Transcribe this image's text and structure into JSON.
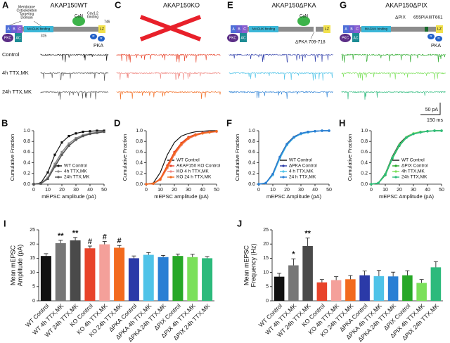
{
  "figure": {
    "top_panels": [
      {
        "label": "A",
        "title": "AKAP150WT",
        "diagram": {
          "targeting": [
            "Membrane",
            "Cytoskeleton",
            "Targeting",
            "Domain"
          ],
          "residue_a": "315",
          "abc": [
            "A",
            "B",
            "C"
          ],
          "maguk": "MAGUK binding",
          "pkc": "PKC",
          "ac": "AC",
          "can": "CaN",
          "cav": [
            "Cav1.2",
            "binding"
          ],
          "residue_b": "746",
          "lz": "LZ",
          "r": "R",
          "pka": "PKA"
        },
        "trace_labels": [
          "Control",
          "4h TTX,MK",
          "24h TTX,MK"
        ],
        "trace_colors": [
          "#111111",
          "#555555",
          "#555555"
        ]
      },
      {
        "label": "C",
        "title": "AKAP150KO",
        "trace_colors": [
          "#e8432a",
          "#f08a84",
          "#f26a1e"
        ]
      },
      {
        "label": "E",
        "title": "AKAP150ΔPKA",
        "diagram": {
          "abc": [
            "A",
            "B",
            "C"
          ],
          "maguk": "MAGUK binding",
          "pkc": "PKC",
          "ac": "AC",
          "can": "CaN",
          "lz": "LZ",
          "deletion": "ΔPKA 709-718"
        },
        "trace_colors": [
          "#2b3aa8",
          "#4fc3e8",
          "#2a7fd4"
        ]
      },
      {
        "label": "G",
        "title": "AKAP150ΔPIX",
        "diagram": {
          "abc": [
            "A",
            "B",
            "C"
          ],
          "maguk": "MAGUK binding",
          "pkc": "PKC",
          "ac": "AC",
          "lz": "LZ",
          "r": "R",
          "pka": "PKA",
          "pix": "ΔPIX",
          "sequence": "655PIAIIIT661"
        },
        "trace_colors": [
          "#27a827",
          "#7be05a",
          "#2cba7c"
        ],
        "scale_bar": {
          "y": "50 pA",
          "x": "150 ms"
        }
      }
    ]
  },
  "chart_data": [
    {
      "type": "line",
      "panel": "B",
      "xlabel": "mEPSC amplitude (pA)",
      "ylabel": "Cumulative Fraction",
      "x": [
        0,
        5,
        10,
        15,
        20,
        25,
        30,
        35,
        40,
        45,
        50
      ],
      "xlim": [
        0,
        50
      ],
      "xticks": [
        0,
        10,
        20,
        30,
        40,
        50
      ],
      "ylim": [
        0,
        1
      ],
      "yticks": [
        {
          "value": 0,
          "label": "0.0"
        },
        0.2,
        0.4,
        0.6,
        0.8,
        {
          "value": 1,
          "label": "1.0"
        }
      ],
      "legend": "lower right",
      "series": [
        {
          "name": "WT Control",
          "color": "#111111",
          "marker": "square",
          "values": [
            0,
            0.02,
            0.22,
            0.55,
            0.78,
            0.9,
            0.95,
            0.98,
            0.99,
            1,
            1
          ]
        },
        {
          "name": "4h TTX,MK",
          "color": "#8a8a8a",
          "marker": "square",
          "values": [
            0,
            0.01,
            0.12,
            0.38,
            0.6,
            0.76,
            0.86,
            0.92,
            0.95,
            0.97,
            0.98
          ]
        },
        {
          "name": "24h TTX,MK",
          "color": "#555555",
          "marker": "square",
          "values": [
            0,
            0.01,
            0.1,
            0.33,
            0.55,
            0.72,
            0.83,
            0.9,
            0.94,
            0.96,
            0.98
          ]
        }
      ]
    },
    {
      "type": "line",
      "panel": "D",
      "xlabel": "mEPSC amplitude (pA)",
      "ylabel": "Cumulative Fraction",
      "x": [
        0,
        5,
        10,
        15,
        20,
        25,
        30,
        35,
        40,
        45,
        50
      ],
      "xlim": [
        0,
        50
      ],
      "xticks": [
        0,
        10,
        20,
        30,
        40,
        50
      ],
      "ylim": [
        0,
        1
      ],
      "yticks": [
        {
          "value": 0,
          "label": "0.0"
        },
        0.2,
        0.4,
        0.6,
        0.8,
        {
          "value": 1,
          "label": "1.0"
        }
      ],
      "legend": "lower right",
      "series": [
        {
          "name": "WT Control",
          "color": "#111111",
          "values": [
            0,
            0.02,
            0.22,
            0.55,
            0.78,
            0.9,
            0.95,
            0.98,
            0.99,
            1,
            1
          ]
        },
        {
          "name": "AKAP150 KO Control",
          "color": "#e8432a",
          "marker": "circle",
          "values": [
            0,
            0.01,
            0.1,
            0.35,
            0.6,
            0.77,
            0.88,
            0.93,
            0.96,
            0.98,
            0.99
          ]
        },
        {
          "name": "KO 4 h TTX,MK",
          "color": "#f08a84",
          "marker": "circle",
          "values": [
            0,
            0.01,
            0.08,
            0.3,
            0.55,
            0.73,
            0.85,
            0.91,
            0.95,
            0.97,
            0.98
          ]
        },
        {
          "name": "KO 24 h TTX,MK",
          "color": "#f26a1e",
          "marker": "circle",
          "values": [
            0,
            0.01,
            0.09,
            0.32,
            0.57,
            0.75,
            0.86,
            0.92,
            0.95,
            0.97,
            0.99
          ]
        }
      ]
    },
    {
      "type": "line",
      "panel": "F",
      "xlabel": "mEPSC Amplitude (pA)",
      "ylabel": "Cumulative Fraction",
      "x": [
        0,
        5,
        10,
        15,
        20,
        25,
        30,
        35,
        40,
        45,
        50
      ],
      "xlim": [
        0,
        50
      ],
      "xticks": [
        0,
        10,
        20,
        30,
        40,
        50
      ],
      "ylim": [
        0,
        1
      ],
      "yticks": [
        {
          "value": 0,
          "label": "0.0"
        },
        0.2,
        0.4,
        0.6,
        0.8,
        {
          "value": 1,
          "label": "1.0"
        }
      ],
      "legend": "lower right",
      "series": [
        {
          "name": "WT Control",
          "color": "#111111",
          "values": [
            0,
            0.02,
            0.2,
            0.52,
            0.76,
            0.89,
            0.95,
            0.98,
            0.99,
            1,
            1
          ]
        },
        {
          "name": "ΔPKA Control",
          "color": "#2b3aa8",
          "marker": "circle",
          "values": [
            0,
            0.02,
            0.18,
            0.5,
            0.74,
            0.88,
            0.94,
            0.97,
            0.99,
            1,
            1
          ]
        },
        {
          "name": "4 h TTX,MK",
          "color": "#4fc3e8",
          "marker": "circle",
          "values": [
            0,
            0.02,
            0.17,
            0.48,
            0.73,
            0.87,
            0.94,
            0.97,
            0.99,
            1,
            1
          ]
        },
        {
          "name": "24 h TTX,MK",
          "color": "#2a7fd4",
          "marker": "circle",
          "values": [
            0,
            0.02,
            0.19,
            0.51,
            0.75,
            0.88,
            0.95,
            0.98,
            0.99,
            1,
            1
          ]
        }
      ]
    },
    {
      "type": "line",
      "panel": "H",
      "xlabel": "mEPSC Amplitude (pA)",
      "ylabel": "Cumulative Fraction",
      "x": [
        0,
        5,
        10,
        15,
        20,
        25,
        30,
        35,
        40,
        45,
        50
      ],
      "xlim": [
        0,
        50
      ],
      "xticks": [
        0,
        10,
        20,
        30,
        40,
        50
      ],
      "ylim": [
        0,
        1
      ],
      "yticks": [
        {
          "value": 0,
          "label": "0.0"
        },
        0.2,
        0.4,
        0.6,
        0.8,
        {
          "value": 1,
          "label": "1.0"
        }
      ],
      "legend": "lower right",
      "series": [
        {
          "name": "WT Control",
          "color": "#111111",
          "values": [
            0,
            0.02,
            0.2,
            0.52,
            0.76,
            0.89,
            0.95,
            0.98,
            0.99,
            1,
            1
          ]
        },
        {
          "name": "ΔPIX Control",
          "color": "#27a827",
          "marker": "circle",
          "values": [
            0,
            0.02,
            0.17,
            0.48,
            0.72,
            0.87,
            0.94,
            0.97,
            0.99,
            1,
            1
          ]
        },
        {
          "name": "4h TTX,MK",
          "color": "#7be05a",
          "marker": "circle",
          "values": [
            0,
            0.02,
            0.19,
            0.5,
            0.74,
            0.88,
            0.95,
            0.98,
            0.99,
            1,
            1
          ]
        },
        {
          "name": "24h TTX,MK",
          "color": "#2cba7c",
          "marker": "circle",
          "values": [
            0,
            0.02,
            0.18,
            0.49,
            0.73,
            0.87,
            0.94,
            0.97,
            0.99,
            1,
            1
          ]
        }
      ]
    },
    {
      "type": "bar",
      "panel": "I",
      "ylabel": [
        "Mean mEPSC",
        "Amplitude (pA)"
      ],
      "categories": [
        "WT Control",
        "WT 4h TTX,MK",
        "WT 24h TTX,MK",
        "KO Control",
        "KO 4h TTX,MK",
        "KO 24h TTX,MK",
        "ΔPKA Control",
        "ΔPKA 4h TTX,MK",
        "ΔPKA 24h TTX,MK",
        "ΔPIX Control",
        "ΔPIX 4h TTX,MK",
        "ΔPIX 24h TTX,MK"
      ],
      "values": [
        15.8,
        20.3,
        21.3,
        18.5,
        19.9,
        18.7,
        15.0,
        16.2,
        15.4,
        15.8,
        15.4,
        15.0
      ],
      "errors": [
        0.8,
        1.0,
        1.0,
        0.8,
        1.0,
        0.8,
        0.8,
        0.8,
        0.6,
        0.7,
        1.0,
        0.6
      ],
      "significance": [
        null,
        "**",
        "**",
        "#",
        "#",
        "#",
        null,
        null,
        null,
        null,
        null,
        null
      ],
      "colors": [
        "#111111",
        "#777777",
        "#4a4a4a",
        "#e8432a",
        "#f4a09a",
        "#f26a1e",
        "#2b3aa8",
        "#4fc3e8",
        "#2a7fd4",
        "#27a827",
        "#7be05a",
        "#2cba7c"
      ],
      "ylim": [
        0,
        25
      ],
      "yticks": [
        0,
        5,
        10,
        15,
        20,
        25
      ]
    },
    {
      "type": "bar",
      "panel": "J",
      "ylabel": [
        "Mean mEPSC",
        "Frequency (Hz)"
      ],
      "categories": [
        "WT Control",
        "WT 4h TTX,MK",
        "WT 24h TTX,MK",
        "KO Control",
        "KO 4h TTX,MK",
        "KO 24h TTX,MK",
        "ΔPKA Control",
        "ΔPKA 4h TTX,MK",
        "ΔPKA 24h TTX,MK",
        "ΔPIX Control",
        "ΔPIX 4h TTX,MK",
        "ΔPIX 24h TTX,MK"
      ],
      "values": [
        8.5,
        12.5,
        19.3,
        6.5,
        7.3,
        7.6,
        9.0,
        8.7,
        8.6,
        9.0,
        6.3,
        11.8
      ],
      "errors": [
        1.2,
        2.3,
        2.8,
        1.0,
        1.2,
        1.3,
        1.5,
        2.0,
        1.5,
        1.6,
        1.2,
        2.0
      ],
      "significance": [
        null,
        "*",
        "**",
        null,
        null,
        null,
        null,
        null,
        null,
        null,
        null,
        null
      ],
      "colors": [
        "#111111",
        "#777777",
        "#4a4a4a",
        "#e8432a",
        "#f4a09a",
        "#f26a1e",
        "#2b3aa8",
        "#4fc3e8",
        "#2a7fd4",
        "#27a827",
        "#7be05a",
        "#2cba7c"
      ],
      "ylim": [
        0,
        25
      ],
      "yticks": [
        0,
        5,
        10,
        15,
        20,
        25
      ]
    }
  ]
}
